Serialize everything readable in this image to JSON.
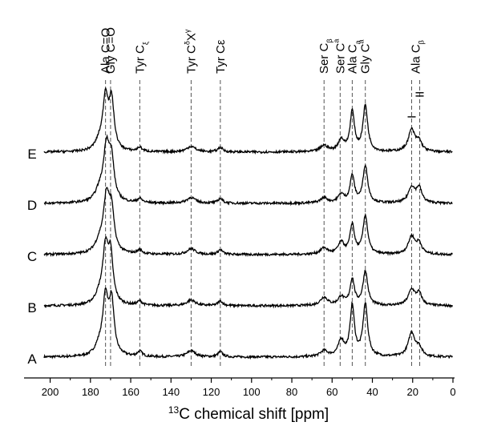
{
  "chart_data": {
    "type": "line",
    "title": "",
    "xlabel_sup": "13",
    "xlabel": "C chemical shift [ppm]",
    "x_range": [
      205,
      0
    ],
    "x_ticks": [
      200,
      180,
      160,
      140,
      120,
      100,
      80,
      60,
      40,
      20,
      0
    ],
    "x_reversed": true,
    "grid": false,
    "reference_lines_ppm": [
      172.5,
      170.0,
      155.5,
      130.0,
      115.5,
      64.0,
      56.0,
      50.0,
      43.5,
      20.5,
      16.5
    ],
    "annotations": [
      {
        "id": "ala-co",
        "text": "Ala C=O",
        "sub": "",
        "sup": "",
        "ppm": 172.5
      },
      {
        "id": "gly-co",
        "text": "Gly C=O",
        "sub": "",
        "sup": "",
        "ppm": 170.0
      },
      {
        "id": "tyr-cz",
        "text": "Tyr C",
        "sub": "ξ",
        "sup": "",
        "ppm": 155.5
      },
      {
        "id": "tyr-cdx",
        "text": "Tyr C",
        "sub": "",
        "sup": "δ",
        "tail": "X",
        "tail_sup": "γ",
        "ppm": 130.0
      },
      {
        "id": "tyr-ce",
        "text": "Tyr Cε",
        "sub": "",
        "sup": "",
        "ppm": 115.5
      },
      {
        "id": "ser-cb",
        "text": "Ser C",
        "sub": "β",
        "sup": "",
        "ppm": 64.0
      },
      {
        "id": "ser-ca",
        "text": "Ser C",
        "sub": "",
        "sup": "a",
        "ppm": 56.0
      },
      {
        "id": "ala-ca",
        "text": "Ala C",
        "sub": "a",
        "sup": "",
        "ppm": 50.0
      },
      {
        "id": "gly-ca",
        "text": "Gly C",
        "sub": "",
        "sup": "a",
        "ppm": 43.5
      },
      {
        "id": "ala-cb",
        "text": "Ala C",
        "sub": "β",
        "sup": "",
        "ppm": 18.5
      },
      {
        "id": "form-i",
        "text": "I",
        "sub": "",
        "sup": "",
        "ppm": 20.5
      },
      {
        "id": "form-ii",
        "text": "II",
        "sub": "",
        "sup": "",
        "ppm": 16.5
      }
    ],
    "series": [
      {
        "name": "A",
        "offset": 0,
        "peaks": [
          {
            "ppm": 172.5,
            "height": 5.3,
            "width": 1.6
          },
          {
            "ppm": 169.5,
            "height": 5.0,
            "width": 1.5
          },
          {
            "ppm": 175.5,
            "height": 0.9,
            "width": 2.5
          },
          {
            "ppm": 155.5,
            "height": 0.5,
            "width": 1.4
          },
          {
            "ppm": 130.0,
            "height": 0.6,
            "width": 2.5
          },
          {
            "ppm": 115.5,
            "height": 0.5,
            "width": 1.4
          },
          {
            "ppm": 64.0,
            "height": 0.55,
            "width": 2.2
          },
          {
            "ppm": 55.5,
            "height": 1.5,
            "width": 1.8
          },
          {
            "ppm": 50.0,
            "height": 4.8,
            "width": 1.3
          },
          {
            "ppm": 43.5,
            "height": 5.0,
            "width": 1.4
          },
          {
            "ppm": 20.5,
            "height": 2.3,
            "width": 2.0
          },
          {
            "ppm": 16.8,
            "height": 0.8,
            "width": 1.6
          }
        ]
      },
      {
        "name": "B",
        "offset": 1,
        "peaks": [
          {
            "ppm": 172.5,
            "height": 5.1,
            "width": 1.7
          },
          {
            "ppm": 170.0,
            "height": 4.3,
            "width": 1.5
          },
          {
            "ppm": 175.5,
            "height": 0.8,
            "width": 2.5
          },
          {
            "ppm": 155.5,
            "height": 0.4,
            "width": 1.4
          },
          {
            "ppm": 130.0,
            "height": 0.55,
            "width": 2.5
          },
          {
            "ppm": 115.5,
            "height": 0.45,
            "width": 1.4
          },
          {
            "ppm": 64.0,
            "height": 0.8,
            "width": 2.2
          },
          {
            "ppm": 55.5,
            "height": 0.8,
            "width": 1.8
          },
          {
            "ppm": 50.0,
            "height": 2.5,
            "width": 1.3
          },
          {
            "ppm": 43.5,
            "height": 3.3,
            "width": 1.4
          },
          {
            "ppm": 20.5,
            "height": 1.5,
            "width": 2.0
          },
          {
            "ppm": 16.8,
            "height": 1.1,
            "width": 1.6
          }
        ]
      },
      {
        "name": "C",
        "offset": 2,
        "peaks": [
          {
            "ppm": 172.0,
            "height": 5.2,
            "width": 1.9
          },
          {
            "ppm": 169.5,
            "height": 3.5,
            "width": 1.5
          },
          {
            "ppm": 175.5,
            "height": 0.9,
            "width": 2.5
          },
          {
            "ppm": 155.5,
            "height": 0.4,
            "width": 1.4
          },
          {
            "ppm": 130.0,
            "height": 0.55,
            "width": 2.5
          },
          {
            "ppm": 115.5,
            "height": 0.45,
            "width": 1.4
          },
          {
            "ppm": 64.0,
            "height": 0.6,
            "width": 2.2
          },
          {
            "ppm": 55.5,
            "height": 1.1,
            "width": 1.8
          },
          {
            "ppm": 50.0,
            "height": 2.8,
            "width": 1.3
          },
          {
            "ppm": 43.5,
            "height": 3.7,
            "width": 1.4
          },
          {
            "ppm": 20.5,
            "height": 1.7,
            "width": 2.0
          },
          {
            "ppm": 16.8,
            "height": 1.0,
            "width": 1.6
          }
        ]
      },
      {
        "name": "D",
        "offset": 3,
        "peaks": [
          {
            "ppm": 172.0,
            "height": 5.2,
            "width": 1.9
          },
          {
            "ppm": 169.5,
            "height": 3.4,
            "width": 1.5
          },
          {
            "ppm": 175.5,
            "height": 0.9,
            "width": 2.5
          },
          {
            "ppm": 155.5,
            "height": 0.4,
            "width": 1.4
          },
          {
            "ppm": 130.0,
            "height": 0.55,
            "width": 2.5
          },
          {
            "ppm": 115.5,
            "height": 0.45,
            "width": 1.4
          },
          {
            "ppm": 64.0,
            "height": 0.5,
            "width": 2.2
          },
          {
            "ppm": 55.5,
            "height": 0.8,
            "width": 1.8
          },
          {
            "ppm": 50.0,
            "height": 2.6,
            "width": 1.3
          },
          {
            "ppm": 43.5,
            "height": 3.6,
            "width": 1.4
          },
          {
            "ppm": 20.5,
            "height": 1.5,
            "width": 2.0
          },
          {
            "ppm": 16.8,
            "height": 1.4,
            "width": 1.6
          }
        ]
      },
      {
        "name": "E",
        "offset": 4,
        "peaks": [
          {
            "ppm": 172.5,
            "height": 4.9,
            "width": 1.6
          },
          {
            "ppm": 169.5,
            "height": 4.6,
            "width": 1.5
          },
          {
            "ppm": 175.5,
            "height": 0.8,
            "width": 2.5
          },
          {
            "ppm": 155.5,
            "height": 0.4,
            "width": 1.4
          },
          {
            "ppm": 130.0,
            "height": 0.55,
            "width": 2.5
          },
          {
            "ppm": 115.5,
            "height": 0.45,
            "width": 1.4
          },
          {
            "ppm": 64.0,
            "height": 0.6,
            "width": 2.2
          },
          {
            "ppm": 55.5,
            "height": 1.1,
            "width": 1.8
          },
          {
            "ppm": 50.0,
            "height": 3.8,
            "width": 1.3
          },
          {
            "ppm": 43.5,
            "height": 4.4,
            "width": 1.4
          },
          {
            "ppm": 20.5,
            "height": 2.1,
            "width": 2.0
          },
          {
            "ppm": 16.8,
            "height": 0.9,
            "width": 1.6
          }
        ]
      }
    ]
  }
}
